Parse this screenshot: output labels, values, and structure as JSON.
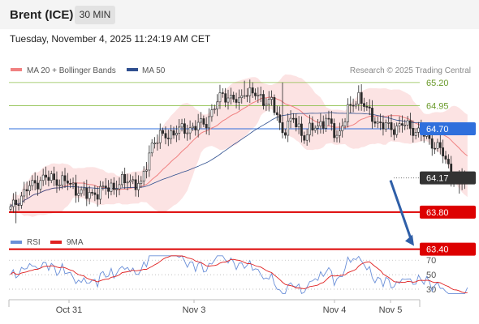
{
  "header": {
    "title": "Brent (ICE)",
    "timeframe": "30 MIN"
  },
  "timestamp": "Tuesday, November 4, 2025 11:24:19 AM CET",
  "legend": {
    "ma20_label": "MA 20 + Bollinger Bands",
    "ma50_label": "MA 50",
    "credit": "Research © 2025 Trading Central",
    "rsi_label": "RSI",
    "ma9_label": "9MA"
  },
  "colors": {
    "ma20": "#f08080",
    "ma50": "#2f4f8f",
    "rsi": "#6a8fd8",
    "rsi_ma9": "#e02020",
    "resistance_green": "#8cbf4a",
    "pivot_blue": "#2f6fdc",
    "support_red": "#dd0000",
    "current": "#333333",
    "arrow": "#2f5fa8"
  },
  "chart_data": [
    {
      "type": "candlestick",
      "y_range": [
        63.35,
        65.35
      ],
      "levels": [
        {
          "label": "65.20",
          "value": 65.2,
          "kind": "resistance",
          "color": "#8cbf4a"
        },
        {
          "label": "64.95",
          "value": 64.95,
          "kind": "resistance",
          "color": "#8cbf4a"
        },
        {
          "label": "64.70",
          "value": 64.7,
          "kind": "pivot",
          "color": "#2f6fdc"
        },
        {
          "label": "64.17",
          "value": 64.17,
          "kind": "current",
          "color": "#333333"
        },
        {
          "label": "63.80",
          "value": 63.8,
          "kind": "support",
          "color": "#dd0000"
        },
        {
          "label": "63.40",
          "value": 63.4,
          "kind": "support",
          "color": "#dd0000"
        }
      ],
      "x_ticks": [
        "Oct 31",
        "Nov 3",
        "Nov 4",
        "Nov 5"
      ],
      "series": [
        {
          "name": "MA 20 + Bollinger Bands",
          "color": "#f08080"
        },
        {
          "name": "MA 50",
          "color": "#2f4f8f"
        }
      ],
      "forecast_arrow": {
        "from": 64.17,
        "to": 63.4
      }
    },
    {
      "type": "line",
      "y_ticks": [
        70,
        50,
        30
      ],
      "y_range": [
        20,
        78
      ],
      "series": [
        {
          "name": "RSI",
          "color": "#6a8fd8"
        },
        {
          "name": "9MA",
          "color": "#e02020"
        }
      ]
    }
  ]
}
